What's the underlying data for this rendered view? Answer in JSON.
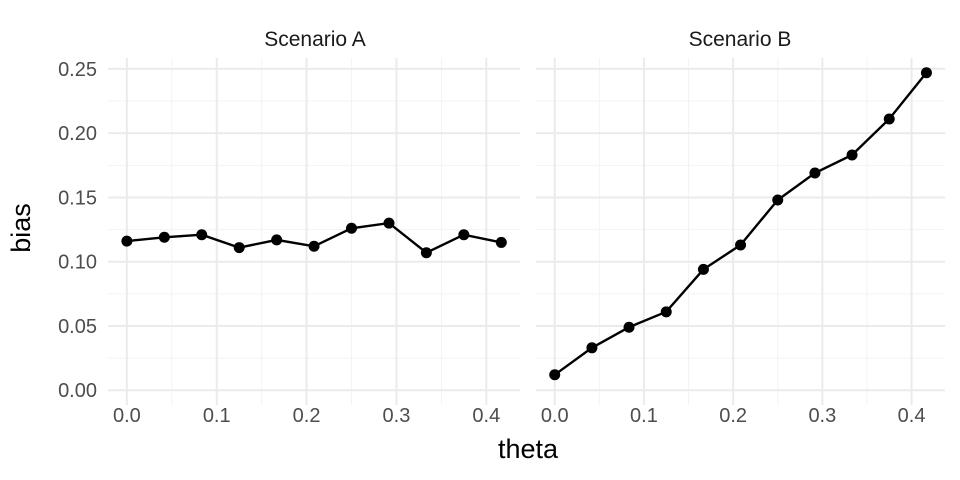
{
  "chart_data": {
    "type": "line",
    "xlabel": "theta",
    "ylabel": "bias",
    "xlim": [
      -0.021,
      0.4375
    ],
    "ylim": [
      -0.0115,
      0.2585
    ],
    "x_ticks": [
      "0.0",
      "0.1",
      "0.2",
      "0.3",
      "0.4"
    ],
    "y_ticks": [
      "0.00",
      "0.05",
      "0.10",
      "0.15",
      "0.20",
      "0.25"
    ],
    "grid": true,
    "panels": [
      {
        "title": "Scenario A",
        "x": [
          0.0,
          0.0417,
          0.0833,
          0.125,
          0.1667,
          0.2083,
          0.25,
          0.2917,
          0.3333,
          0.375,
          0.4167
        ],
        "y": [
          0.116,
          0.119,
          0.121,
          0.111,
          0.117,
          0.112,
          0.126,
          0.13,
          0.107,
          0.121,
          0.115
        ]
      },
      {
        "title": "Scenario B",
        "x": [
          0.0,
          0.0417,
          0.0833,
          0.125,
          0.1667,
          0.2083,
          0.25,
          0.2917,
          0.3333,
          0.375,
          0.4167
        ],
        "y": [
          0.012,
          0.033,
          0.049,
          0.061,
          0.094,
          0.113,
          0.148,
          0.169,
          0.183,
          0.211,
          0.247
        ]
      }
    ]
  }
}
